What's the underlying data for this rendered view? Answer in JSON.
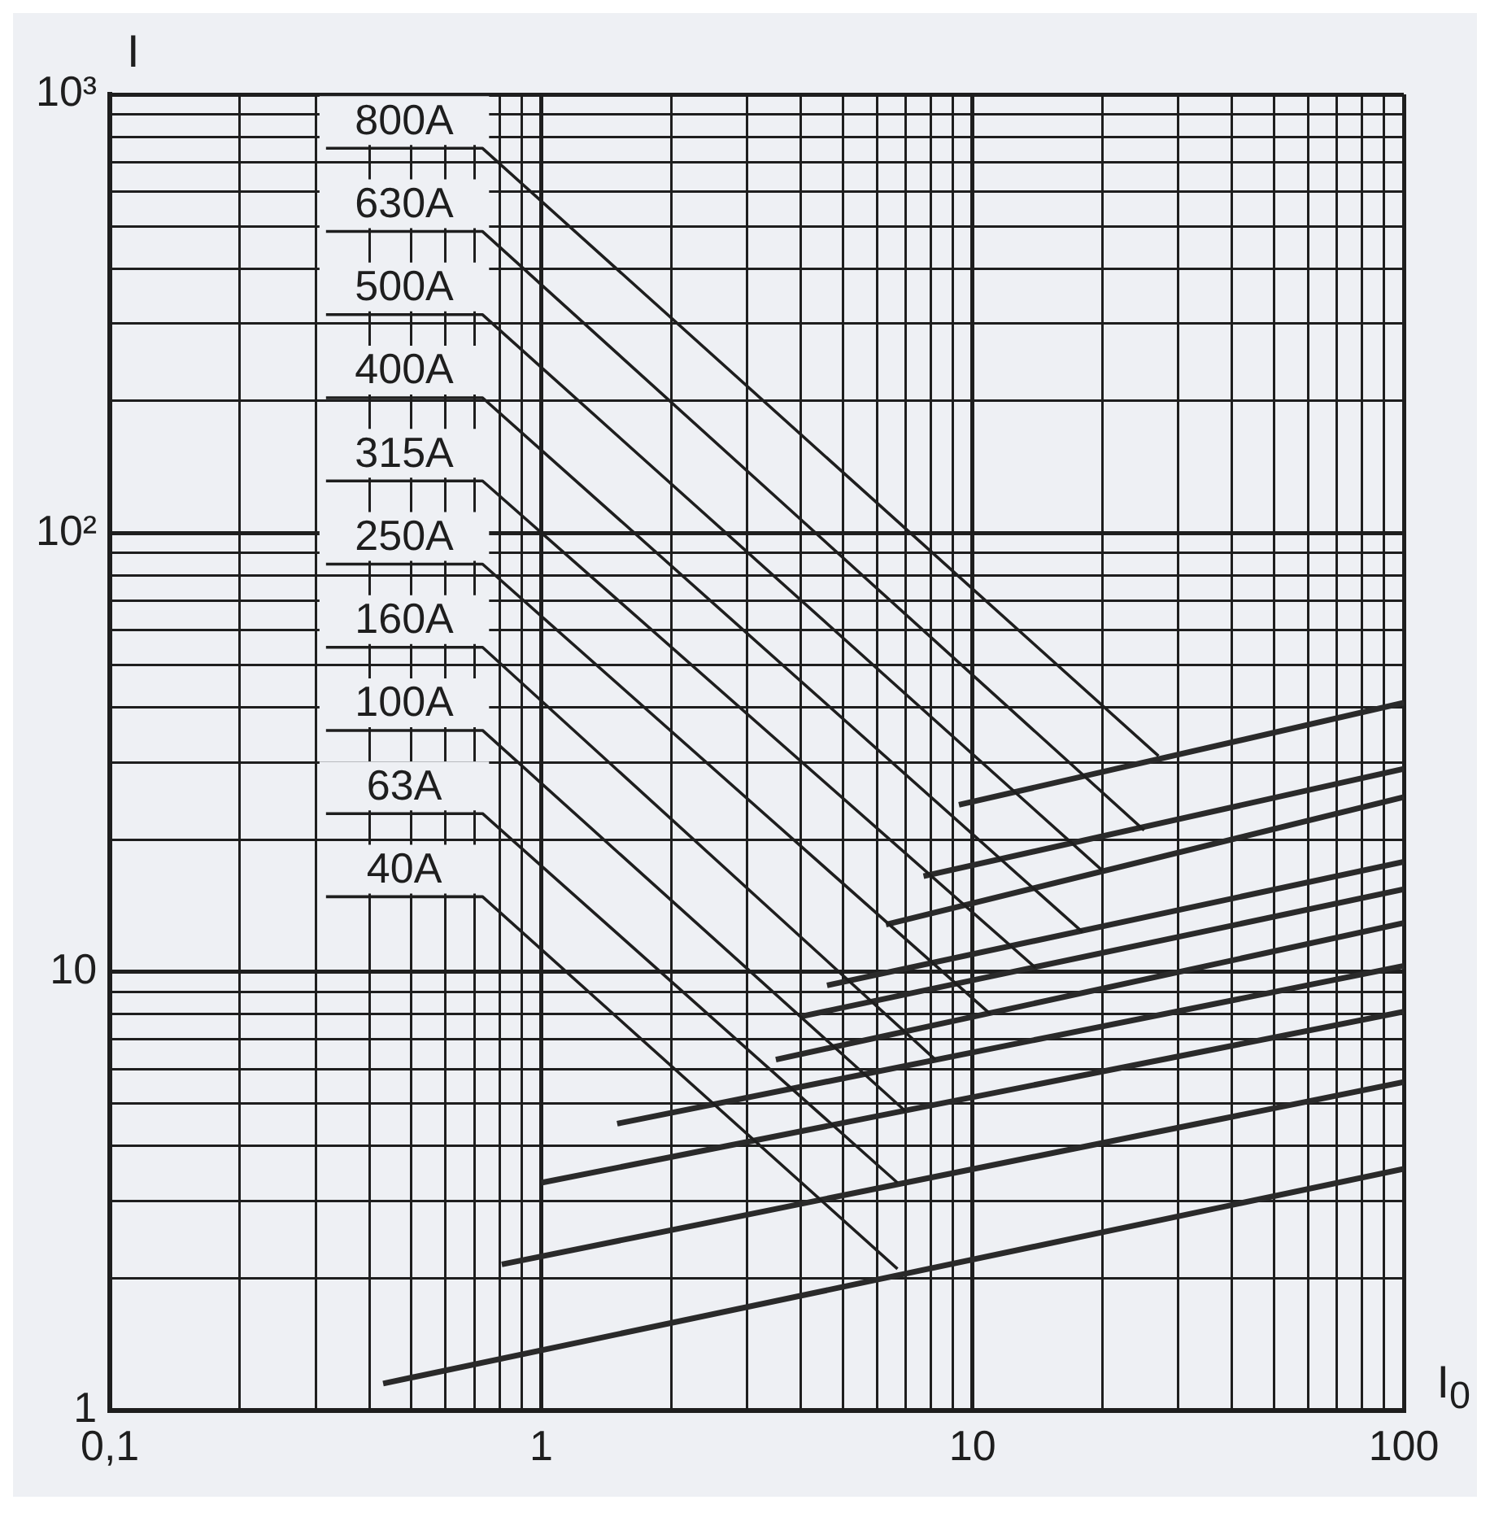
{
  "chart_data": {
    "type": "line",
    "xlabel": "I$_{0}$",
    "ylabel": "I",
    "log": "xy",
    "grid": true,
    "legend": false,
    "marker": "none",
    "line_style": "solid",
    "xlim": [
      0.1,
      100
    ],
    "ylim": [
      1,
      1000
    ],
    "xticks": [
      {
        "value": 0.1,
        "label": "0,1"
      },
      {
        "value": 0.2,
        "label": null
      },
      {
        "value": 0.3,
        "label": null
      },
      {
        "value": 0.4,
        "label": null
      },
      {
        "value": 0.5,
        "label": null
      },
      {
        "value": 0.6,
        "label": null
      },
      {
        "value": 0.7,
        "label": null
      },
      {
        "value": 0.8,
        "label": null
      },
      {
        "value": 0.9,
        "label": null
      },
      1,
      {
        "value": 2,
        "label": null
      },
      {
        "value": 3,
        "label": null
      },
      {
        "value": 4,
        "label": null
      },
      {
        "value": 5,
        "label": null
      },
      {
        "value": 6,
        "label": null
      },
      {
        "value": 7,
        "label": null
      },
      {
        "value": 8,
        "label": null
      },
      {
        "value": 9,
        "label": null
      },
      10,
      {
        "value": 20,
        "label": null
      },
      {
        "value": 30,
        "label": null
      },
      {
        "value": 40,
        "label": null
      },
      {
        "value": 50,
        "label": null
      },
      {
        "value": 60,
        "label": null
      },
      {
        "value": 70,
        "label": null
      },
      {
        "value": 80,
        "label": null
      },
      {
        "value": 90,
        "label": null
      },
      100
    ],
    "yticks": [
      1,
      {
        "value": 2,
        "label": null
      },
      {
        "value": 3,
        "label": null
      },
      {
        "value": 4,
        "label": null
      },
      {
        "value": 5,
        "label": null
      },
      {
        "value": 6,
        "label": null
      },
      {
        "value": 7,
        "label": null
      },
      {
        "value": 8,
        "label": null
      },
      {
        "value": 9,
        "label": null
      },
      10,
      {
        "value": 20,
        "label": null
      },
      {
        "value": 30,
        "label": null
      },
      {
        "value": 40,
        "label": null
      },
      {
        "value": 50,
        "label": null
      },
      {
        "value": 60,
        "label": null
      },
      {
        "value": 70,
        "label": null
      },
      {
        "value": 80,
        "label": null
      },
      {
        "value": 90,
        "label": null
      },
      {
        "value": 100,
        "label": "10²"
      },
      {
        "value": 200,
        "label": null
      },
      {
        "value": 300,
        "label": null
      },
      {
        "value": 400,
        "label": null
      },
      {
        "value": 500,
        "label": null
      },
      {
        "value": 600,
        "label": null
      },
      {
        "value": 700,
        "label": null
      },
      {
        "value": 800,
        "label": null
      },
      {
        "value": 900,
        "label": null
      },
      {
        "value": 1000,
        "label": "10³"
      }
    ],
    "series": [
      {
        "color": "#2a2a2a",
        "x": [
          100,
          9.3
        ],
        "values": [
          41,
          24
        ]
      },
      {
        "color": "#2a2a2a",
        "x": [
          100,
          7.7
        ],
        "values": [
          29,
          16.5
        ]
      },
      {
        "color": "#2a2a2a",
        "x": [
          100,
          6.3
        ],
        "values": [
          25,
          12.8
        ]
      },
      {
        "color": "#2a2a2a",
        "x": [
          100,
          4.6
        ],
        "values": [
          17.8,
          9.3
        ]
      },
      {
        "color": "#2a2a2a",
        "x": [
          100,
          4.0
        ],
        "values": [
          15.4,
          7.9
        ]
      },
      {
        "color": "#2a2a2a",
        "x": [
          100,
          3.5
        ],
        "values": [
          12.9,
          6.3
        ]
      },
      {
        "color": "#2a2a2a",
        "x": [
          100,
          1.5
        ],
        "values": [
          10.3,
          4.5
        ]
      },
      {
        "color": "#2a2a2a",
        "x": [
          100,
          1.0
        ],
        "values": [
          8.1,
          3.3
        ]
      },
      {
        "color": "#2a2a2a",
        "x": [
          100,
          0.81
        ],
        "values": [
          5.6,
          2.15
        ]
      },
      {
        "color": "#2a2a2a",
        "x": [
          100,
          0.43
        ],
        "values": [
          3.55,
          1.15
        ]
      }
    ],
    "annotations": [
      {
        "text": "800A",
        "x": 27,
        "y": 31
      },
      {
        "text": "630A",
        "x": 25,
        "y": 21
      },
      {
        "text": "500A",
        "x": 20,
        "y": 17
      },
      {
        "text": "400A",
        "x": 18,
        "y": 12.3
      },
      {
        "text": "315A",
        "x": 14,
        "y": 10.2
      },
      {
        "text": "250A",
        "x": 11,
        "y": 8
      },
      {
        "text": "160A",
        "x": 8.2,
        "y": 6.3
      },
      {
        "text": "100A",
        "x": 7,
        "y": 4.8
      },
      {
        "text": "63A",
        "x": 6.7,
        "y": 3.3
      },
      {
        "text": "40A",
        "x": 6.7,
        "y": 2.1
      }
    ]
  }
}
